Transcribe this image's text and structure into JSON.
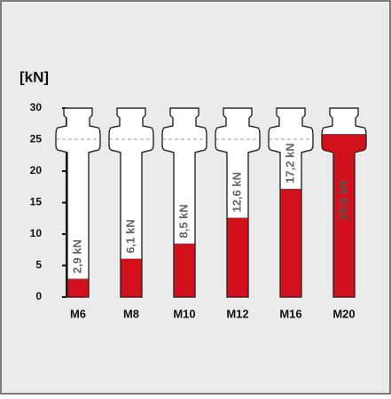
{
  "chart_data": {
    "type": "bar",
    "y_label": "[kN]",
    "categories": [
      "M6",
      "M8",
      "M10",
      "M12",
      "M16",
      "M20"
    ],
    "values": [
      2.9,
      6.1,
      8.5,
      12.6,
      17.2,
      25.9
    ],
    "value_labels": [
      "2,9 kN",
      "6,1 kN",
      "8,5 kN",
      "12,6 kN",
      "17,2 kN",
      "25,9 kN"
    ],
    "color": "#d3111c",
    "ylim": [
      0,
      30
    ],
    "yticks": [
      0,
      5,
      10,
      15,
      20,
      25,
      30
    ]
  }
}
